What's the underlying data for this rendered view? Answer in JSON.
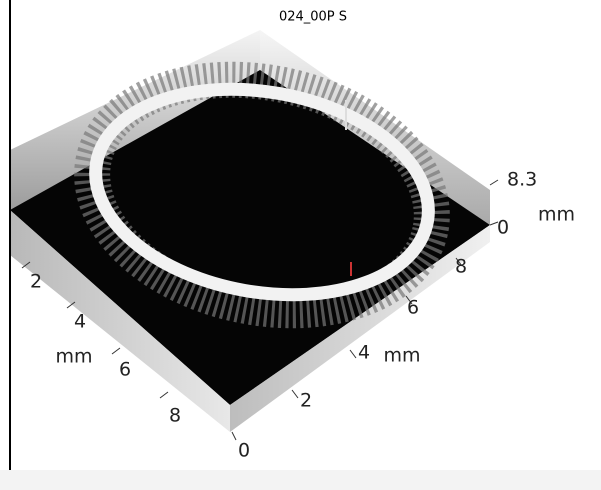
{
  "title": "024_00P S",
  "axes": {
    "x": {
      "label": "mm",
      "ticks": [
        "2",
        "4",
        "6",
        "8"
      ]
    },
    "y": {
      "label": "mm",
      "ticks": [
        "0",
        "2",
        "4",
        "6",
        "8"
      ]
    },
    "z": {
      "label": "mm",
      "ticks": [
        "8.3",
        "0"
      ]
    }
  }
}
